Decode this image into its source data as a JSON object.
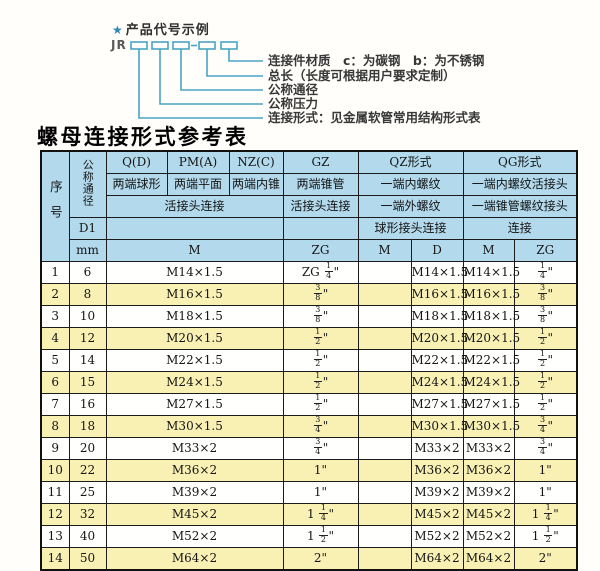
{
  "colors": {
    "header_bg": "#b2d9ec",
    "row_alt_bg": "#f9f1b4",
    "diagram_line": "#4aa4c4",
    "table_border": "#1b1b1b",
    "star": "#2e86b8"
  },
  "diagram": {
    "star_icon": "★",
    "heading": "产品代号示例",
    "code_prefix": "JR",
    "labels": [
      "连接件材质　c：为碳钢　b：为不锈钢",
      "总长（长度可根据用户要求定制）",
      "公称通径",
      "公称压力",
      "连接形式：见金属软管常用结构形式表"
    ]
  },
  "table": {
    "title": "螺母连接形式参考表",
    "header": {
      "serial": "序号",
      "nominal_diameter": "公称通径",
      "d1": "D1",
      "unit": "mm",
      "q_code": "Q(D)",
      "q_desc": "两端球形",
      "pm_code": "PM(A)",
      "pm_desc": "两端平面",
      "nz_code": "NZ(C)",
      "nz_desc": "两端内锥",
      "gz_code": "GZ",
      "gz_desc": "两端锥管",
      "union_joint": "活接头连接",
      "gz_union": "活接头连接",
      "qz_title": "QZ形式",
      "qz_row2": "一端内螺纹",
      "qz_row3": "一端外螺纹",
      "qz_row4": "球形接头连接",
      "qg_title": "QG形式",
      "qg_row2": "一端内螺纹活接头",
      "qg_row3": "一端锥管螺纹接头",
      "qg_row4": "连接",
      "m": "M",
      "zg": "ZG",
      "qz_m": "M",
      "qz_d": "D",
      "qg_m": "M",
      "qg_zg": "ZG"
    },
    "rows": [
      {
        "no": "1",
        "dn": "6",
        "m": "M14×1.5",
        "zg": "ZG 1/4\"",
        "qz_m": "",
        "qz_d": "M14×1.5",
        "qg_m": "M14×1.5",
        "qg_zg": "1/4\""
      },
      {
        "no": "2",
        "dn": "8",
        "m": "M16×1.5",
        "zg": "3/8\"",
        "qz_m": "",
        "qz_d": "M16×1.5",
        "qg_m": "M16×1.5",
        "qg_zg": "3/8\""
      },
      {
        "no": "3",
        "dn": "10",
        "m": "M18×1.5",
        "zg": "3/8\"",
        "qz_m": "",
        "qz_d": "M18×1.5",
        "qg_m": "M18×1.5",
        "qg_zg": "3/8\""
      },
      {
        "no": "4",
        "dn": "12",
        "m": "M20×1.5",
        "zg": "1/2\"",
        "qz_m": "",
        "qz_d": "M20×1.5",
        "qg_m": "M20×1.5",
        "qg_zg": "1/2\""
      },
      {
        "no": "5",
        "dn": "14",
        "m": "M22×1.5",
        "zg": "1/2\"",
        "qz_m": "",
        "qz_d": "M22×1.5",
        "qg_m": "M22×1.5",
        "qg_zg": "1/2\""
      },
      {
        "no": "6",
        "dn": "15",
        "m": "M24×1.5",
        "zg": "1/2\"",
        "qz_m": "",
        "qz_d": "M24×1.5",
        "qg_m": "M24×1.5",
        "qg_zg": "1/2\""
      },
      {
        "no": "7",
        "dn": "16",
        "m": "M27×1.5",
        "zg": "1/2\"",
        "qz_m": "",
        "qz_d": "M27×1.5",
        "qg_m": "M27×1.5",
        "qg_zg": "1/2\""
      },
      {
        "no": "8",
        "dn": "18",
        "m": "M30×1.5",
        "zg": "3/4\"",
        "qz_m": "",
        "qz_d": "M30×1.5",
        "qg_m": "M30×1.5",
        "qg_zg": "3/4\""
      },
      {
        "no": "9",
        "dn": "20",
        "m": "M33×2",
        "zg": "3/4\"",
        "qz_m": "",
        "qz_d": "M33×2",
        "qg_m": "M33×2",
        "qg_zg": "3/4\""
      },
      {
        "no": "10",
        "dn": "22",
        "m": "M36×2",
        "zg": "1\"",
        "qz_m": "",
        "qz_d": "M36×2",
        "qg_m": "M36×2",
        "qg_zg": "1\""
      },
      {
        "no": "11",
        "dn": "25",
        "m": "M39×2",
        "zg": "1\"",
        "qz_m": "",
        "qz_d": "M39×2",
        "qg_m": "M39×2",
        "qg_zg": "1\""
      },
      {
        "no": "12",
        "dn": "32",
        "m": "M45×2",
        "zg": "1 1/4\"",
        "qz_m": "",
        "qz_d": "M45×2",
        "qg_m": "M45×2",
        "qg_zg": "1 1/4\""
      },
      {
        "no": "13",
        "dn": "40",
        "m": "M52×2",
        "zg": "1 1/2\"",
        "qz_m": "",
        "qz_d": "M52×2",
        "qg_m": "M52×2",
        "qg_zg": "1 1/2\""
      },
      {
        "no": "14",
        "dn": "50",
        "m": "M64×2",
        "zg": "2\"",
        "qz_m": "",
        "qz_d": "M64×2",
        "qg_m": "M64×2",
        "qg_zg": "2\""
      }
    ]
  }
}
